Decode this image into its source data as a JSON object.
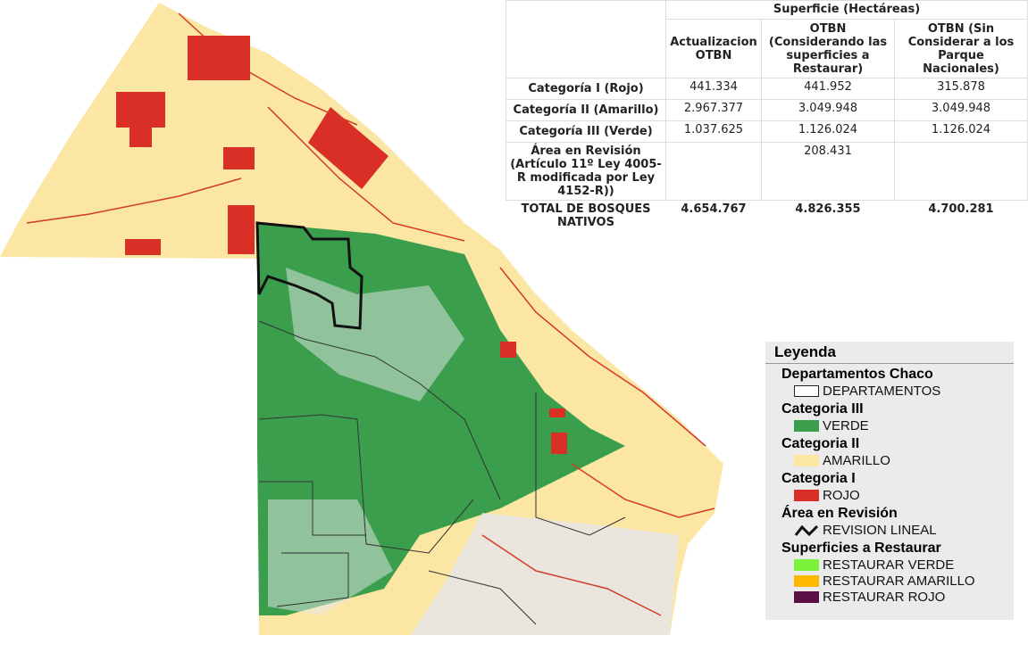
{
  "table": {
    "group_header": "Superficie (Hectáreas)",
    "columns": [
      "Actualizacion OTBN",
      "OTBN (Considerando las superficies a Restaurar)",
      "OTBN (Sin Considerar a los Parque Nacionales)"
    ],
    "rows": [
      {
        "label": "Categoría I (Rojo)",
        "cells": [
          "441.334",
          "441.952",
          "315.878"
        ]
      },
      {
        "label": "Categoría II (Amarillo)",
        "cells": [
          "2.967.377",
          "3.049.948",
          "3.049.948"
        ]
      },
      {
        "label": "Categoría III (Verde)",
        "cells": [
          "1.037.625",
          "1.126.024",
          "1.126.024"
        ]
      },
      {
        "label": "Área en Revisión (Artículo 11º Ley 4005-R modificada por Ley 4152-R))",
        "value": "208.431"
      },
      {
        "label": "TOTAL DE BOSQUES NATIVOS",
        "cells": [
          "4.654.767",
          "4.826.355",
          "4.700.281"
        ]
      }
    ]
  },
  "legend": {
    "title": "Leyenda",
    "groups": [
      {
        "title": "Departamentos Chaco",
        "items": [
          "DEPARTAMENTOS"
        ]
      },
      {
        "title": "Categoria III",
        "items": [
          "VERDE"
        ]
      },
      {
        "title": "Categoria II",
        "items": [
          "AMARILLO"
        ]
      },
      {
        "title": "Categoria I",
        "items": [
          "ROJO"
        ]
      },
      {
        "title": "Área en Revisión",
        "items": [
          "REVISION LINEAL"
        ]
      },
      {
        "title": "Superficies a Restaurar",
        "items": [
          "RESTAURAR VERDE",
          "RESTAURAR AMARILLO",
          "RESTAURAR ROJO"
        ]
      }
    ]
  }
}
